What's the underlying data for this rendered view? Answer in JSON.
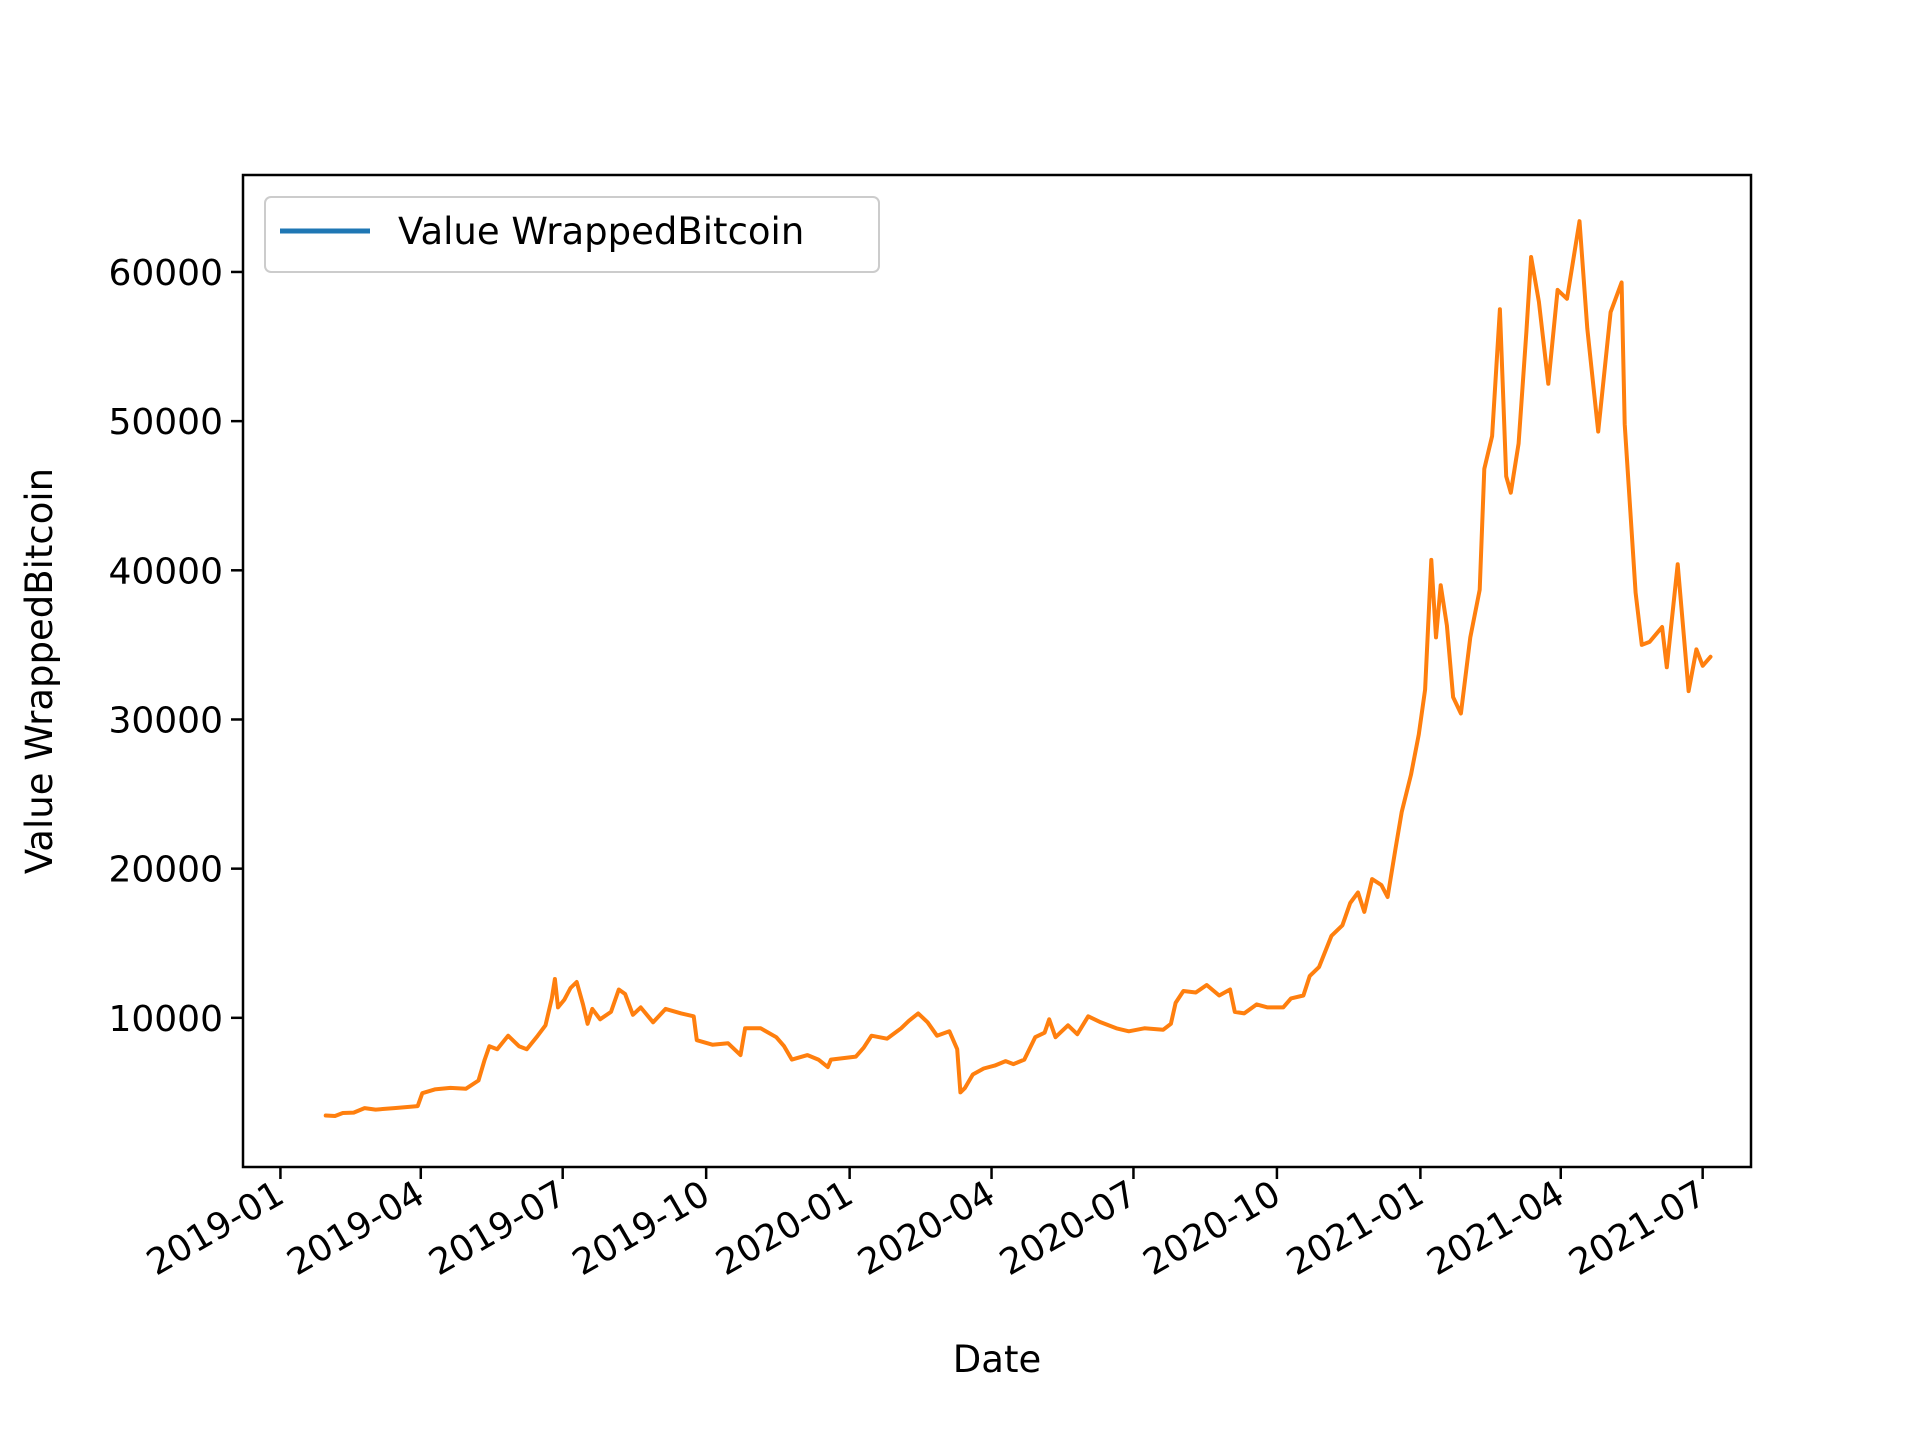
{
  "chart_data": {
    "type": "line",
    "title": "",
    "xlabel": "Date",
    "ylabel": "Value WrappedBitcoin",
    "legend": {
      "placement": "top-left",
      "entries": [
        "Value WrappedBitcoin"
      ]
    },
    "grid": false,
    "xlim": [
      "2018-12-08",
      "2021-08-01"
    ],
    "ylim": [
      0,
      66500
    ],
    "x_ticks": [
      "2019-01",
      "2019-04",
      "2019-07",
      "2019-10",
      "2020-01",
      "2020-04",
      "2020-07",
      "2020-10",
      "2021-01",
      "2021-04",
      "2021-07"
    ],
    "y_ticks": [
      10000,
      20000,
      30000,
      40000,
      50000,
      60000
    ],
    "colors": {
      "legend_line": "#1f77b4",
      "series_line": "#ff7f0e"
    },
    "series": [
      {
        "name": "Value WrappedBitcoin",
        "points": [
          [
            "2019-01-30",
            3450
          ],
          [
            "2019-02-05",
            3420
          ],
          [
            "2019-02-10",
            3620
          ],
          [
            "2019-02-17",
            3650
          ],
          [
            "2019-02-24",
            3950
          ],
          [
            "2019-03-03",
            3850
          ],
          [
            "2019-03-15",
            3950
          ],
          [
            "2019-03-30",
            4080
          ],
          [
            "2019-04-02",
            4950
          ],
          [
            "2019-04-10",
            5200
          ],
          [
            "2019-04-20",
            5300
          ],
          [
            "2019-04-30",
            5250
          ],
          [
            "2019-05-08",
            5800
          ],
          [
            "2019-05-12",
            7200
          ],
          [
            "2019-05-15",
            8100
          ],
          [
            "2019-05-20",
            7900
          ],
          [
            "2019-05-27",
            8800
          ],
          [
            "2019-06-03",
            8100
          ],
          [
            "2019-06-08",
            7900
          ],
          [
            "2019-06-15",
            8800
          ],
          [
            "2019-06-20",
            9500
          ],
          [
            "2019-06-24",
            11300
          ],
          [
            "2019-06-26",
            12600
          ],
          [
            "2019-06-28",
            10700
          ],
          [
            "2019-07-02",
            11200
          ],
          [
            "2019-07-06",
            12000
          ],
          [
            "2019-07-10",
            12400
          ],
          [
            "2019-07-14",
            10900
          ],
          [
            "2019-07-17",
            9600
          ],
          [
            "2019-07-20",
            10600
          ],
          [
            "2019-07-25",
            9900
          ],
          [
            "2019-08-01",
            10400
          ],
          [
            "2019-08-06",
            11900
          ],
          [
            "2019-08-10",
            11600
          ],
          [
            "2019-08-15",
            10200
          ],
          [
            "2019-08-20",
            10700
          ],
          [
            "2019-08-28",
            9700
          ],
          [
            "2019-09-05",
            10600
          ],
          [
            "2019-09-15",
            10300
          ],
          [
            "2019-09-23",
            10100
          ],
          [
            "2019-09-25",
            8500
          ],
          [
            "2019-10-05",
            8200
          ],
          [
            "2019-10-15",
            8300
          ],
          [
            "2019-10-23",
            7500
          ],
          [
            "2019-10-26",
            9300
          ],
          [
            "2019-11-05",
            9300
          ],
          [
            "2019-11-15",
            8700
          ],
          [
            "2019-11-20",
            8100
          ],
          [
            "2019-11-25",
            7200
          ],
          [
            "2019-12-05",
            7500
          ],
          [
            "2019-12-12",
            7200
          ],
          [
            "2019-12-18",
            6700
          ],
          [
            "2019-12-20",
            7200
          ],
          [
            "2020-01-05",
            7400
          ],
          [
            "2020-01-10",
            8000
          ],
          [
            "2020-01-15",
            8800
          ],
          [
            "2020-01-25",
            8600
          ],
          [
            "2020-02-03",
            9300
          ],
          [
            "2020-02-08",
            9800
          ],
          [
            "2020-02-14",
            10300
          ],
          [
            "2020-02-20",
            9700
          ],
          [
            "2020-02-26",
            8800
          ],
          [
            "2020-03-05",
            9100
          ],
          [
            "2020-03-10",
            7900
          ],
          [
            "2020-03-12",
            5000
          ],
          [
            "2020-03-15",
            5300
          ],
          [
            "2020-03-20",
            6200
          ],
          [
            "2020-03-27",
            6600
          ],
          [
            "2020-04-03",
            6800
          ],
          [
            "2020-04-10",
            7100
          ],
          [
            "2020-04-15",
            6900
          ],
          [
            "2020-04-22",
            7200
          ],
          [
            "2020-04-29",
            8700
          ],
          [
            "2020-05-05",
            9000
          ],
          [
            "2020-05-08",
            9900
          ],
          [
            "2020-05-12",
            8700
          ],
          [
            "2020-05-20",
            9500
          ],
          [
            "2020-05-26",
            8900
          ],
          [
            "2020-06-02",
            10100
          ],
          [
            "2020-06-10",
            9700
          ],
          [
            "2020-06-20",
            9300
          ],
          [
            "2020-06-28",
            9100
          ],
          [
            "2020-07-08",
            9300
          ],
          [
            "2020-07-20",
            9200
          ],
          [
            "2020-07-25",
            9600
          ],
          [
            "2020-07-28",
            11000
          ],
          [
            "2020-08-02",
            11800
          ],
          [
            "2020-08-10",
            11700
          ],
          [
            "2020-08-17",
            12200
          ],
          [
            "2020-08-25",
            11500
          ],
          [
            "2020-09-01",
            11900
          ],
          [
            "2020-09-04",
            10400
          ],
          [
            "2020-09-10",
            10300
          ],
          [
            "2020-09-18",
            10900
          ],
          [
            "2020-09-25",
            10700
          ],
          [
            "2020-10-05",
            10700
          ],
          [
            "2020-10-10",
            11300
          ],
          [
            "2020-10-18",
            11500
          ],
          [
            "2020-10-22",
            12800
          ],
          [
            "2020-10-28",
            13400
          ],
          [
            "2020-11-05",
            15500
          ],
          [
            "2020-11-12",
            16200
          ],
          [
            "2020-11-17",
            17700
          ],
          [
            "2020-11-22",
            18400
          ],
          [
            "2020-11-26",
            17100
          ],
          [
            "2020-12-01",
            19300
          ],
          [
            "2020-12-07",
            18900
          ],
          [
            "2020-12-11",
            18100
          ],
          [
            "2020-12-16",
            21300
          ],
          [
            "2020-12-20",
            23800
          ],
          [
            "2020-12-26",
            26300
          ],
          [
            "2020-12-31",
            29000
          ],
          [
            "2021-01-04",
            32000
          ],
          [
            "2021-01-08",
            40700
          ],
          [
            "2021-01-11",
            35500
          ],
          [
            "2021-01-14",
            39000
          ],
          [
            "2021-01-18",
            36300
          ],
          [
            "2021-01-22",
            31500
          ],
          [
            "2021-01-27",
            30400
          ],
          [
            "2021-02-02",
            35500
          ],
          [
            "2021-02-08",
            38700
          ],
          [
            "2021-02-11",
            46800
          ],
          [
            "2021-02-16",
            49000
          ],
          [
            "2021-02-21",
            57500
          ],
          [
            "2021-02-25",
            46300
          ],
          [
            "2021-02-28",
            45200
          ],
          [
            "2021-03-05",
            48500
          ],
          [
            "2021-03-10",
            56000
          ],
          [
            "2021-03-13",
            61000
          ],
          [
            "2021-03-18",
            58000
          ],
          [
            "2021-03-24",
            52500
          ],
          [
            "2021-03-30",
            58800
          ],
          [
            "2021-04-05",
            58200
          ],
          [
            "2021-04-13",
            63400
          ],
          [
            "2021-04-18",
            56200
          ],
          [
            "2021-04-25",
            49300
          ],
          [
            "2021-05-03",
            57300
          ],
          [
            "2021-05-10",
            59300
          ],
          [
            "2021-05-12",
            49800
          ],
          [
            "2021-05-19",
            38500
          ],
          [
            "2021-05-23",
            35000
          ],
          [
            "2021-05-28",
            35200
          ],
          [
            "2021-06-05",
            36200
          ],
          [
            "2021-06-08",
            33500
          ],
          [
            "2021-06-15",
            40400
          ],
          [
            "2021-06-22",
            31900
          ],
          [
            "2021-06-27",
            34700
          ],
          [
            "2021-07-01",
            33600
          ],
          [
            "2021-07-06",
            34200
          ]
        ]
      }
    ]
  }
}
